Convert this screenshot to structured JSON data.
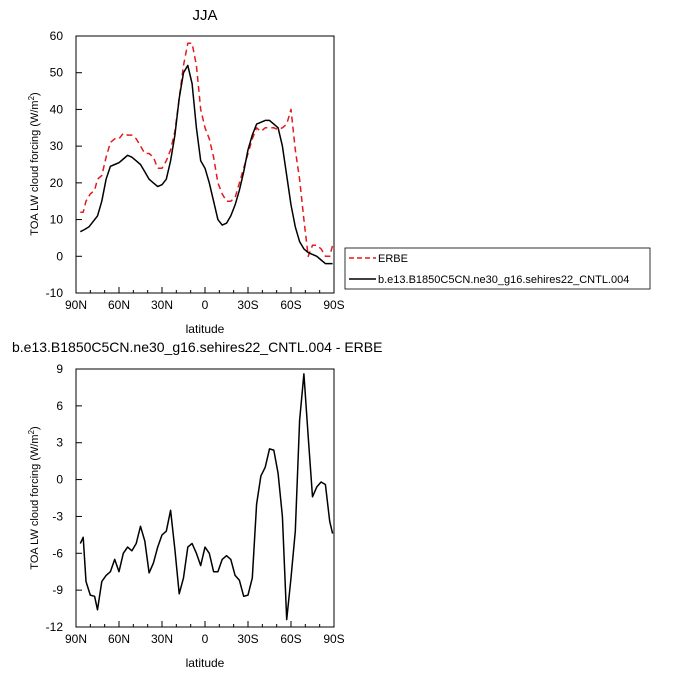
{
  "chart_data": [
    {
      "type": "line",
      "title": "JJA",
      "xlabel": "latitude",
      "ylabel": "TOA LW cloud forcing (W/m",
      "ylabel_sup": "2",
      "ylabel_tail": ")",
      "xlim": [
        90,
        -90
      ],
      "ylim": [
        -10,
        60
      ],
      "x_ticks": [
        90,
        60,
        30,
        0,
        -30,
        -60,
        -90
      ],
      "x_tick_labels": [
        "90N",
        "60N",
        "30N",
        "0",
        "30S",
        "60S",
        "90S"
      ],
      "y_ticks": [
        -10,
        0,
        10,
        20,
        30,
        40,
        50,
        60
      ],
      "y_tick_labels": [
        "-10",
        "0",
        "10",
        "20",
        "30",
        "40",
        "50",
        "60"
      ],
      "grid": false,
      "legend_placement": "outside-right",
      "series": [
        {
          "name": "ERBE",
          "color": "#e41a1c",
          "dash": "dashed",
          "x": [
            87,
            85,
            83,
            80,
            77,
            75,
            72,
            69,
            66,
            63,
            60,
            57,
            54,
            51,
            48,
            45,
            42,
            39,
            36,
            33,
            30,
            27,
            24,
            21,
            18,
            15,
            12,
            9,
            6,
            3,
            0,
            -3,
            -6,
            -9,
            -12,
            -15,
            -18,
            -21,
            -24,
            -27,
            -30,
            -33,
            -36,
            -39,
            -42,
            -45,
            -48,
            -51,
            -54,
            -57,
            -60,
            -63,
            -66,
            -69,
            -72,
            -75,
            -78,
            -81,
            -84,
            -87,
            -89
          ],
          "y": [
            12,
            12,
            15,
            17,
            18,
            21,
            22,
            27,
            31,
            32,
            32,
            33.5,
            33,
            33,
            32,
            30,
            28,
            28,
            27,
            24,
            24,
            26,
            29,
            34,
            43,
            52,
            58,
            58,
            52,
            40,
            35,
            32,
            27,
            20,
            17,
            15,
            15,
            16,
            20,
            24,
            28,
            32,
            35,
            34,
            35,
            35,
            35,
            34.5,
            35,
            36,
            40,
            29,
            21,
            10,
            0,
            3,
            3,
            2,
            0,
            0,
            3
          ]
        },
        {
          "name": "b.e13.B1850C5CN.ne30_g16.sehires22_CNTL.004",
          "color": "#000000",
          "dash": "solid",
          "x": [
            87,
            84,
            81,
            78,
            75,
            72,
            69,
            66,
            63,
            60,
            57,
            54,
            51,
            48,
            45,
            42,
            39,
            36,
            33,
            30,
            27,
            24,
            21,
            18,
            15,
            12,
            9,
            6,
            3,
            0,
            -3,
            -6,
            -9,
            -12,
            -15,
            -18,
            -21,
            -24,
            -27,
            -30,
            -33,
            -36,
            -39,
            -42,
            -45,
            -48,
            -51,
            -54,
            -57,
            -60,
            -63,
            -66,
            -69,
            -72,
            -75,
            -78,
            -81,
            -84,
            -87,
            -89
          ],
          "y": [
            6.7,
            7.3,
            8,
            9.5,
            11,
            15,
            21,
            24.5,
            25,
            25.5,
            26.5,
            27.5,
            27,
            26,
            25,
            23,
            21,
            20,
            19,
            19.5,
            21,
            26,
            33,
            43,
            50,
            52,
            47,
            35,
            26,
            24,
            20,
            15,
            10,
            8.5,
            9,
            11,
            14,
            18,
            23,
            29,
            33,
            36,
            36.5,
            37,
            37,
            36,
            35,
            30,
            22,
            14,
            8,
            4,
            2,
            1,
            0.5,
            0,
            -1,
            -2,
            -2,
            -2
          ]
        }
      ]
    },
    {
      "type": "line",
      "title": "b.e13.B1850C5CN.ne30_g16.sehires22_CNTL.004 - ERBE",
      "xlabel": "latitude",
      "ylabel": "TOA LW cloud forcing (W/m",
      "ylabel_sup": "2",
      "ylabel_tail": ")",
      "xlim": [
        90,
        -90
      ],
      "ylim": [
        -12,
        9
      ],
      "x_ticks": [
        90,
        60,
        30,
        0,
        -30,
        -60,
        -90
      ],
      "x_tick_labels": [
        "90N",
        "60N",
        "30N",
        "0",
        "30S",
        "60S",
        "90S"
      ],
      "y_ticks": [
        -12,
        -9,
        -6,
        -3,
        0,
        3,
        6,
        9
      ],
      "y_tick_labels": [
        "-12",
        "-9",
        "-6",
        "-3",
        "0",
        "3",
        "6",
        "9"
      ],
      "grid": false,
      "series": [
        {
          "color": "#000000",
          "dash": "solid",
          "x": [
            87,
            85,
            83,
            80,
            77,
            75,
            72,
            69,
            66,
            63,
            60,
            57,
            54,
            51,
            48,
            45,
            42,
            39,
            36,
            33,
            30,
            27,
            24,
            21,
            18,
            15,
            12,
            9,
            6,
            3,
            0,
            -3,
            -6,
            -9,
            -12,
            -15,
            -18,
            -21,
            -24,
            -27,
            -30,
            -33,
            -36,
            -39,
            -42,
            -45,
            -48,
            -51,
            -54,
            -57,
            -60,
            -63,
            -66,
            -69,
            -72,
            -75,
            -78,
            -81,
            -84,
            -87,
            -89
          ],
          "y": [
            -5.2,
            -4.7,
            -8.3,
            -9.4,
            -9.5,
            -10.6,
            -8.3,
            -7.8,
            -7.5,
            -6.5,
            -7.5,
            -6.0,
            -5.5,
            -5.8,
            -5.2,
            -3.8,
            -5.0,
            -7.6,
            -6.8,
            -5.5,
            -4.5,
            -4.2,
            -2.5,
            -5.7,
            -9.3,
            -8.0,
            -5.5,
            -5.2,
            -6.0,
            -7.0,
            -5.5,
            -6.0,
            -7.5,
            -7.5,
            -6.5,
            -6.2,
            -6.5,
            -7.8,
            -8.2,
            -9.5,
            -9.4,
            -8.0,
            -2.0,
            0.3,
            1.0,
            2.5,
            2.4,
            0.5,
            -3.0,
            -11.4,
            -8.0,
            -4.2,
            4.8,
            8.6,
            3.5,
            -1.4,
            -0.6,
            -0.2,
            -0.4,
            -3.4,
            -4.4
          ]
        }
      ]
    }
  ]
}
